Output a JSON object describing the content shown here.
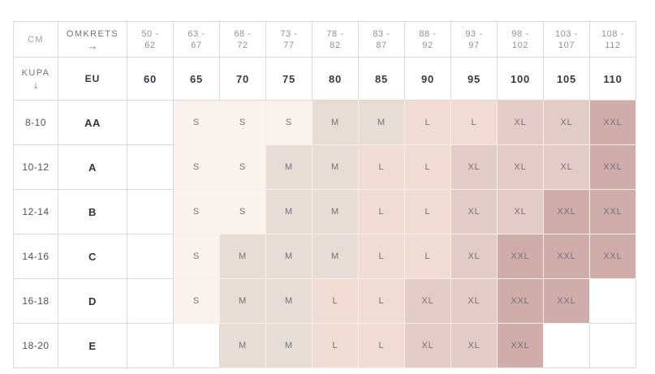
{
  "colors": {
    "S": "#faf2ec",
    "M": "#e8dcd7",
    "L": "#f1dcd4",
    "XL": "#e3cbc7",
    "XXL": "#d0acaa"
  },
  "table": {
    "corner": {
      "cm": "CM",
      "omkrets": "OMKRETS",
      "omkrets_arrow": "→",
      "kupa": "KUPA",
      "kupa_arrow": "↓",
      "eu": "EU"
    },
    "cm_ranges": [
      "50 -\n62",
      "63 -\n67",
      "68 -\n72",
      "73 -\n77",
      "78 -\n82",
      "83 -\n87",
      "88 -\n92",
      "93 -\n97",
      "98 -\n102",
      "103 -\n107",
      "108 -\n112"
    ],
    "eu_values": [
      "60",
      "65",
      "70",
      "75",
      "80",
      "85",
      "90",
      "95",
      "100",
      "105",
      "110"
    ],
    "rows": [
      {
        "range": "8-10",
        "cup": "AA",
        "sizes": [
          "",
          "S",
          "S",
          "S",
          "M",
          "M",
          "L",
          "L",
          "XL",
          "XL",
          "XXL"
        ]
      },
      {
        "range": "10-12",
        "cup": "A",
        "sizes": [
          "",
          "S",
          "S",
          "M",
          "M",
          "L",
          "L",
          "XL",
          "XL",
          "XL",
          "XXL"
        ]
      },
      {
        "range": "12-14",
        "cup": "B",
        "sizes": [
          "",
          "S",
          "S",
          "M",
          "M",
          "L",
          "L",
          "XL",
          "XL",
          "XXL",
          "XXL"
        ]
      },
      {
        "range": "14-16",
        "cup": "C",
        "sizes": [
          "",
          "S",
          "M",
          "M",
          "M",
          "L",
          "L",
          "XL",
          "XXL",
          "XXL",
          "XXL"
        ]
      },
      {
        "range": "16-18",
        "cup": "D",
        "sizes": [
          "",
          "S",
          "M",
          "M",
          "L",
          "L",
          "XL",
          "XL",
          "XXL",
          "XXL",
          ""
        ]
      },
      {
        "range": "18-20",
        "cup": "E",
        "sizes": [
          "",
          "",
          "M",
          "M",
          "L",
          "L",
          "XL",
          "XL",
          "XXL",
          "",
          ""
        ]
      }
    ]
  }
}
